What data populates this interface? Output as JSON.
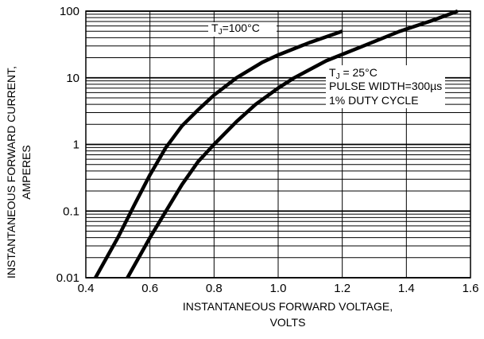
{
  "chart_data": {
    "type": "line",
    "title": "",
    "xlabel_lines": [
      "INSTANTANEOUS FORWARD VOLTAGE,",
      "VOLTS"
    ],
    "ylabel_lines": [
      "INSTANTANEOUS FORWARD CURRENT,",
      "AMPERES"
    ],
    "x_scale": "linear",
    "y_scale": "log",
    "xlim": [
      0.4,
      1.6
    ],
    "ylim": [
      0.01,
      100
    ],
    "x_ticks": [
      0.4,
      0.6,
      0.8,
      1.0,
      1.2,
      1.4,
      1.6
    ],
    "x_tick_labels": [
      "0.4",
      "0.6",
      "0.8",
      "1.0",
      "1.2",
      "1.4",
      "1.6"
    ],
    "y_ticks": [
      0.01,
      0.1,
      1,
      10,
      100
    ],
    "y_tick_labels": [
      "0.01",
      "0.1",
      "1",
      "10",
      "100"
    ],
    "grid": true,
    "series": [
      {
        "label": "TJ=100°C",
        "points": [
          [
            0.43,
            0.01
          ],
          [
            0.5,
            0.04
          ],
          [
            0.55,
            0.12
          ],
          [
            0.6,
            0.35
          ],
          [
            0.65,
            0.9
          ],
          [
            0.7,
            1.9
          ],
          [
            0.75,
            3.3
          ],
          [
            0.8,
            5.5
          ],
          [
            0.87,
            10
          ],
          [
            0.95,
            17
          ],
          [
            1.0,
            22
          ],
          [
            1.1,
            34
          ],
          [
            1.2,
            50
          ]
        ]
      },
      {
        "label": "TJ = 25°C",
        "points": [
          [
            0.53,
            0.01
          ],
          [
            0.6,
            0.04
          ],
          [
            0.65,
            0.1
          ],
          [
            0.7,
            0.25
          ],
          [
            0.75,
            0.55
          ],
          [
            0.8,
            1.0
          ],
          [
            0.87,
            2.2
          ],
          [
            0.93,
            4.0
          ],
          [
            1.0,
            7.0
          ],
          [
            1.05,
            10
          ],
          [
            1.15,
            18
          ],
          [
            1.25,
            28
          ],
          [
            1.38,
            50
          ],
          [
            1.48,
            72
          ],
          [
            1.56,
            100
          ]
        ]
      }
    ],
    "annotations": {
      "tj100": {
        "prefix": "T",
        "subscript": "J",
        "suffix": "=100°C"
      },
      "tj25": {
        "prefix": "T",
        "subscript": "J",
        "suffix": " = 25°C"
      },
      "pulse_width": "PULSE WIDTH=300µs",
      "duty_cycle": "1% DUTY CYCLE"
    }
  }
}
